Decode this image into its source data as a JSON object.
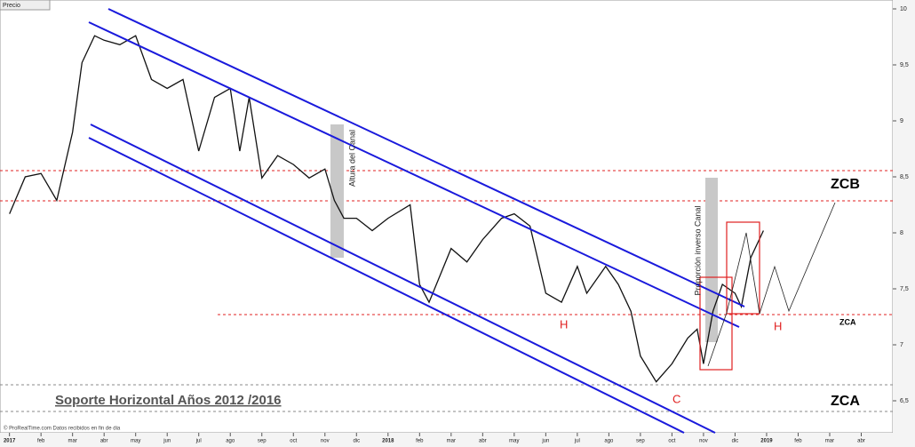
{
  "chart_data": {
    "type": "line",
    "label": "Precio",
    "series": [
      {
        "name": "Precio",
        "color": "#111111",
        "x": [
          0,
          0.5,
          1,
          1.5,
          2,
          2.3,
          2.7,
          3,
          3.5,
          4,
          4.5,
          5,
          5.5,
          6,
          6.5,
          7,
          7.3,
          7.6,
          8,
          8.5,
          9,
          9.5,
          10,
          10.3,
          10.6,
          11,
          11.5,
          12,
          12.7,
          13,
          13.3,
          14,
          14.5,
          15,
          15.6,
          16,
          16.5,
          17,
          17.5,
          18,
          18.3,
          18.9,
          19.3,
          19.7,
          20,
          20.5,
          21,
          21.5,
          21.8,
          22,
          22.3,
          22.6,
          23,
          23.2,
          23.5,
          23.9
        ],
        "values": [
          8.17,
          8.5,
          8.53,
          8.29,
          8.9,
          9.52,
          9.76,
          9.72,
          9.68,
          9.76,
          9.37,
          9.29,
          9.37,
          8.73,
          9.21,
          9.29,
          8.73,
          9.21,
          8.49,
          8.69,
          8.61,
          8.49,
          8.57,
          8.29,
          8.13,
          8.13,
          8.02,
          8.13,
          8.25,
          7.54,
          7.38,
          7.86,
          7.74,
          7.94,
          8.13,
          8.17,
          8.06,
          7.46,
          7.38,
          7.7,
          7.46,
          7.7,
          7.54,
          7.3,
          6.9,
          6.67,
          6.83,
          7.06,
          7.14,
          6.83,
          7.3,
          7.54,
          7.46,
          7.34,
          7.78,
          8.02
        ]
      }
    ],
    "xlim": [
      -0.3,
      28
    ],
    "xticks": [
      {
        "value": 0,
        "label": "2017"
      },
      {
        "value": 1,
        "label": "feb"
      },
      {
        "value": 2,
        "label": "mar"
      },
      {
        "value": 3,
        "label": "abr"
      },
      {
        "value": 4,
        "label": "may"
      },
      {
        "value": 5,
        "label": "jun"
      },
      {
        "value": 6,
        "label": "jul"
      },
      {
        "value": 7,
        "label": "ago"
      },
      {
        "value": 8,
        "label": "sep"
      },
      {
        "value": 9,
        "label": "oct"
      },
      {
        "value": 10,
        "label": "nov"
      },
      {
        "value": 11,
        "label": "dic"
      },
      {
        "value": 12,
        "label": "2018"
      },
      {
        "value": 13,
        "label": "feb"
      },
      {
        "value": 14,
        "label": "mar"
      },
      {
        "value": 15,
        "label": "abr"
      },
      {
        "value": 16,
        "label": "may"
      },
      {
        "value": 17,
        "label": "jun"
      },
      {
        "value": 18,
        "label": "jul"
      },
      {
        "value": 19,
        "label": "ago"
      },
      {
        "value": 20,
        "label": "sep"
      },
      {
        "value": 21,
        "label": "oct"
      },
      {
        "value": 22,
        "label": "nov"
      },
      {
        "value": 23,
        "label": "dic"
      },
      {
        "value": 24,
        "label": "2019"
      },
      {
        "value": 25,
        "label": "feb"
      },
      {
        "value": 26,
        "label": "mar"
      },
      {
        "value": 27,
        "label": "abr"
      }
    ],
    "ylim": [
      6.5,
      10
    ],
    "yticks": [
      {
        "value": 6.5,
        "label": "6,5"
      },
      7,
      {
        "value": 7.5,
        "label": "7,5"
      },
      8,
      {
        "value": 8.5,
        "label": "8,5"
      },
      9,
      {
        "value": 9.5,
        "label": "9,5"
      },
      10
    ],
    "annotations": [
      "Altura del Canal",
      "Proporción inverso Canal",
      "ZCB",
      "ZCA",
      "ZCA",
      "H",
      "H",
      "C",
      "Soporte Horizontal Años  2012 /2016",
      "© ProRealTime.com  Datos recibidos en fin de dia"
    ]
  }
}
